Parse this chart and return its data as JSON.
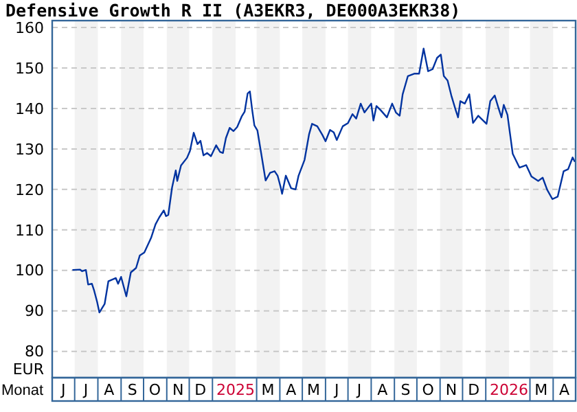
{
  "chart_data": {
    "type": "line",
    "title": "Defensive Growth R II (A3EKR3, DE000A3EKR38)",
    "xlabel": "Monat",
    "ylabel": "EUR",
    "xlim": [
      "2024-06-01",
      "2026-05-01"
    ],
    "xticks": [
      {
        "value": "2024-06-16",
        "label": "J"
      },
      {
        "value": "2024-07-16",
        "label": "J"
      },
      {
        "value": "2024-08-16",
        "label": "A"
      },
      {
        "value": "2024-09-16",
        "label": "S"
      },
      {
        "value": "2024-10-16",
        "label": "O"
      },
      {
        "value": "2024-11-16",
        "label": "N"
      },
      {
        "value": "2024-12-16",
        "label": "D"
      },
      {
        "value": "2025-02-01",
        "label": "2025"
      },
      {
        "value": "2025-03-16",
        "label": "M"
      },
      {
        "value": "2025-04-16",
        "label": "A"
      },
      {
        "value": "2025-05-16",
        "label": "M"
      },
      {
        "value": "2025-06-16",
        "label": "J"
      },
      {
        "value": "2025-07-16",
        "label": "J"
      },
      {
        "value": "2025-08-16",
        "label": "A"
      },
      {
        "value": "2025-09-16",
        "label": "S"
      },
      {
        "value": "2025-10-16",
        "label": "O"
      },
      {
        "value": "2025-11-16",
        "label": "N"
      },
      {
        "value": "2025-12-16",
        "label": "D"
      },
      {
        "value": "2026-02-01",
        "label": "2026"
      },
      {
        "value": "2026-03-16",
        "label": "M"
      },
      {
        "value": "2026-04-16",
        "label": "A"
      }
    ],
    "ylim": [
      73.5,
      161.7
    ],
    "yticks": [
      80,
      90,
      100,
      110,
      120,
      130,
      140,
      150,
      160
    ],
    "grid": "y",
    "line_style": "solid",
    "bands": [
      {
        "axis": "x",
        "from": "2024-07-01",
        "to": "2024-08-01",
        "color": "#f2f2f2"
      },
      {
        "axis": "x",
        "from": "2024-09-01",
        "to": "2024-10-01",
        "color": "#f2f2f2"
      },
      {
        "axis": "x",
        "from": "2024-11-01",
        "to": "2024-12-01",
        "color": "#f2f2f2"
      },
      {
        "axis": "x",
        "from": "2025-01-01",
        "to": "2025-02-01",
        "color": "#f2f2f2"
      },
      {
        "axis": "x",
        "from": "2025-03-01",
        "to": "2025-04-01",
        "color": "#f2f2f2"
      },
      {
        "axis": "x",
        "from": "2025-05-01",
        "to": "2025-06-01",
        "color": "#f2f2f2"
      },
      {
        "axis": "x",
        "from": "2025-07-01",
        "to": "2025-08-01",
        "color": "#f2f2f2"
      },
      {
        "axis": "x",
        "from": "2025-09-01",
        "to": "2025-10-01",
        "color": "#f2f2f2"
      },
      {
        "axis": "x",
        "from": "2025-11-01",
        "to": "2025-12-01",
        "color": "#f2f2f2"
      },
      {
        "axis": "x",
        "from": "2026-01-01",
        "to": "2026-02-01",
        "color": "#f2f2f2"
      },
      {
        "axis": "x",
        "from": "2026-03-01",
        "to": "2026-04-01",
        "color": "#f2f2f2"
      }
    ],
    "series": [
      {
        "color": "#0033a0",
        "x": [
          "2024-06-28",
          "2024-07-08",
          "2024-07-11",
          "2024-07-16",
          "2024-07-19",
          "2024-07-24",
          "2024-07-27",
          "2024-07-31",
          "2024-08-03",
          "2024-08-10",
          "2024-08-15",
          "2024-08-25",
          "2024-08-28",
          "2024-09-01",
          "2024-09-08",
          "2024-09-14",
          "2024-09-21",
          "2024-09-26",
          "2024-10-02",
          "2024-10-11",
          "2024-10-17",
          "2024-10-22",
          "2024-10-28",
          "2024-10-31",
          "2024-11-03",
          "2024-11-08",
          "2024-11-13",
          "2024-11-15",
          "2024-11-20",
          "2024-11-28",
          "2024-12-02",
          "2024-12-07",
          "2024-12-12",
          "2024-12-16",
          "2024-12-20",
          "2024-12-25",
          "2024-12-30",
          "2025-01-06",
          "2025-01-11",
          "2025-01-15",
          "2025-01-19",
          "2025-01-24",
          "2025-01-29",
          "2025-02-03",
          "2025-02-09",
          "2025-02-13",
          "2025-02-17",
          "2025-02-20",
          "2025-02-23",
          "2025-02-26",
          "2025-03-02",
          "2025-03-07",
          "2025-03-13",
          "2025-03-19",
          "2025-03-25",
          "2025-03-29",
          "2025-04-02",
          "2025-04-04",
          "2025-04-09",
          "2025-04-16",
          "2025-04-22",
          "2025-04-26",
          "2025-05-04",
          "2025-05-10",
          "2025-05-14",
          "2025-05-21",
          "2025-05-28",
          "2025-06-01",
          "2025-06-07",
          "2025-06-12",
          "2025-06-16",
          "2025-06-24",
          "2025-07-01",
          "2025-07-07",
          "2025-07-12",
          "2025-07-18",
          "2025-07-23",
          "2025-08-01",
          "2025-08-04",
          "2025-08-08",
          "2025-08-14",
          "2025-08-22",
          "2025-08-29",
          "2025-09-03",
          "2025-09-08",
          "2025-09-12",
          "2025-09-19",
          "2025-09-28",
          "2025-10-04",
          "2025-10-10",
          "2025-10-16",
          "2025-10-22",
          "2025-10-28",
          "2025-11-02",
          "2025-11-06",
          "2025-11-11",
          "2025-11-16",
          "2025-11-22",
          "2025-11-25",
          "2025-11-28",
          "2025-12-04",
          "2025-12-10",
          "2025-12-15",
          "2025-12-22",
          "2026-01-02",
          "2026-01-07",
          "2026-01-13",
          "2026-01-18",
          "2026-01-22",
          "2026-01-25",
          "2026-01-30",
          "2026-02-06",
          "2026-02-15",
          "2026-02-24",
          "2026-03-03",
          "2026-03-12",
          "2026-03-18",
          "2026-03-24",
          "2026-03-31",
          "2026-04-07",
          "2026-04-15",
          "2026-04-21",
          "2026-04-27",
          "2026-04-30"
        ],
        "values": [
          100.1,
          100.2,
          99.8,
          100.1,
          96.5,
          96.7,
          95,
          92.2,
          89.6,
          91.7,
          97.3,
          98.1,
          96.7,
          98.4,
          93.6,
          99.5,
          100.6,
          103.7,
          104.4,
          108,
          111.4,
          113.1,
          114.8,
          113.4,
          113.7,
          120.4,
          124.7,
          122.1,
          125.9,
          127.8,
          129.5,
          134,
          131.2,
          132,
          128.4,
          129,
          128.2,
          130.9,
          129.3,
          129,
          132.7,
          135.2,
          134.4,
          135.4,
          138,
          139.2,
          143.7,
          144.2,
          139.7,
          135.8,
          134.6,
          129,
          122.2,
          124.1,
          124.5,
          123.4,
          120.6,
          118.9,
          123.4,
          120.3,
          120,
          123.4,
          127.3,
          133.6,
          136.2,
          135.6,
          133.4,
          131.9,
          134.7,
          134.1,
          132.2,
          135.6,
          136.4,
          138.6,
          137.5,
          141.2,
          139,
          141.2,
          137,
          140.6,
          139.5,
          137.8,
          141.2,
          139,
          138.2,
          143.5,
          148,
          148.6,
          148.6,
          154.8,
          149.2,
          149.7,
          152.5,
          153.3,
          148,
          146.9,
          143.2,
          139.5,
          137.8,
          141.8,
          141.2,
          143.5,
          136.4,
          138.2,
          136.2,
          141.8,
          143.2,
          140.1,
          137.8,
          140.9,
          138.4,
          128.8,
          125.4,
          126,
          123.2,
          122.1,
          122.9,
          119.9,
          117.6,
          118.2,
          124.5,
          125,
          127.9,
          126.8
        ]
      }
    ]
  }
}
